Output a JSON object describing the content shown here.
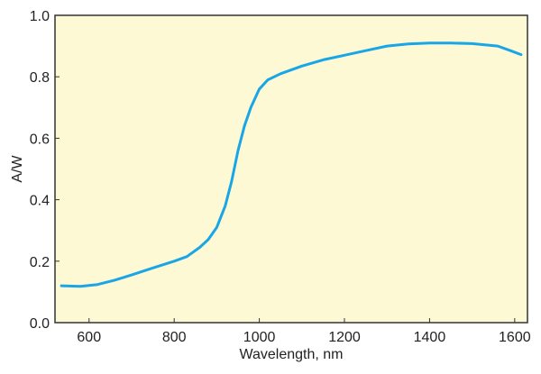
{
  "chart_data": {
    "type": "line",
    "title": "",
    "xlabel": "Wavelength, nm",
    "ylabel": "A/W",
    "xlim": [
      520,
      1630
    ],
    "ylim": [
      0,
      1.0
    ],
    "x_ticks": [
      600,
      800,
      1000,
      1200,
      1400,
      1600
    ],
    "y_ticks": [
      0.0,
      0.2,
      0.4,
      0.6,
      0.8,
      1.0
    ],
    "y_tick_labels": [
      "0.0",
      "0.2",
      "0.4",
      "0.6",
      "0.8",
      "1.0"
    ],
    "grid": false,
    "background_color": "#fdf9d4",
    "line_color": "#1aa6e6",
    "series": [
      {
        "x": [
          535,
          580,
          620,
          660,
          700,
          750,
          800,
          830,
          860,
          880,
          900,
          920,
          935,
          950,
          965,
          980,
          1000,
          1020,
          1050,
          1100,
          1150,
          1200,
          1250,
          1300,
          1350,
          1400,
          1450,
          1500,
          1560,
          1590,
          1615
        ],
        "y": [
          0.12,
          0.118,
          0.124,
          0.138,
          0.155,
          0.178,
          0.2,
          0.215,
          0.245,
          0.27,
          0.31,
          0.38,
          0.46,
          0.56,
          0.64,
          0.7,
          0.76,
          0.79,
          0.81,
          0.835,
          0.855,
          0.87,
          0.885,
          0.9,
          0.907,
          0.91,
          0.91,
          0.908,
          0.9,
          0.885,
          0.872
        ]
      }
    ]
  }
}
